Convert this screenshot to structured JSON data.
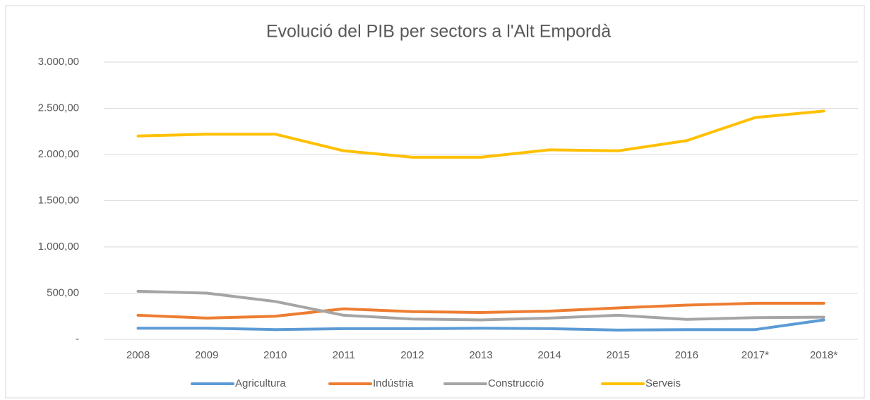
{
  "chart_data": {
    "type": "line",
    "title": "Evolució del PIB per sectors a l'Alt Empordà",
    "categories": [
      "2008",
      "2009",
      "2010",
      "2011",
      "2012",
      "2013",
      "2014",
      "2015",
      "2016",
      "2017*",
      "2018*"
    ],
    "series": [
      {
        "name": "Agricultura",
        "color": "#5b9bd5",
        "values": [
          120,
          120,
          105,
          115,
          115,
          120,
          115,
          100,
          105,
          105,
          210
        ]
      },
      {
        "name": "Indústria",
        "color": "#ed7d31",
        "values": [
          260,
          230,
          250,
          330,
          300,
          290,
          305,
          340,
          370,
          390,
          390
        ]
      },
      {
        "name": "Construcció",
        "color": "#a5a5a5",
        "values": [
          520,
          500,
          410,
          260,
          220,
          210,
          230,
          260,
          215,
          235,
          240
        ]
      },
      {
        "name": "Serveis",
        "color": "#ffc000",
        "values": [
          2200,
          2220,
          2220,
          2040,
          1970,
          1970,
          2050,
          2040,
          2150,
          2400,
          2470
        ]
      }
    ],
    "ylim": [
      0,
      3000
    ],
    "yticks": [
      {
        "value": 0,
        "label": "-"
      },
      {
        "value": 500,
        "label": "500,00"
      },
      {
        "value": 1000,
        "label": "1.000,00"
      },
      {
        "value": 1500,
        "label": "1.500,00"
      },
      {
        "value": 2000,
        "label": "2.000,00"
      },
      {
        "value": 2500,
        "label": "2.500,00"
      },
      {
        "value": 3000,
        "label": "3.000,00"
      }
    ],
    "grid": true,
    "legend": "bottom"
  }
}
